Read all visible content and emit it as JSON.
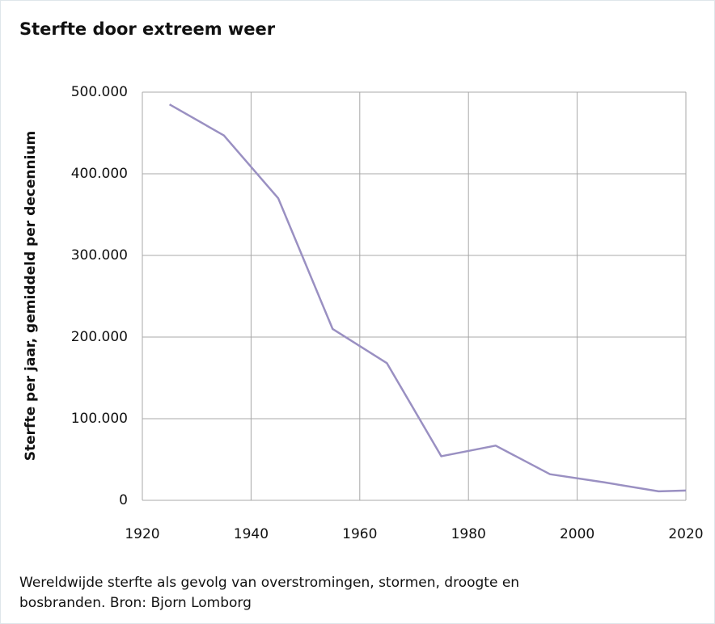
{
  "chart_data": {
    "type": "line",
    "title": "Sterfte door extreem weer",
    "y_label": "Sterfte per jaar, gemiddeld per decennium",
    "caption": [
      "Wereldwijde sterfte als gevolg van overstromingen, stormen, droogte en",
      "bosbranden. Bron: Bjorn Lomborg"
    ],
    "x": [
      1925,
      1935,
      1945,
      1955,
      1965,
      1975,
      1985,
      1995,
      2005,
      2015,
      2020
    ],
    "series": [
      {
        "color": "#9a90c2",
        "values": [
          485000,
          447000,
          370000,
          210000,
          168000,
          54000,
          67000,
          32000,
          22000,
          11000,
          12000
        ]
      }
    ],
    "xlim": [
      1920,
      2020
    ],
    "xticks": [
      1920,
      1940,
      1960,
      1980,
      2000,
      2020
    ],
    "ylim": [
      0,
      500000
    ],
    "yticks": [
      0,
      {
        "value": 100000,
        "label": "100.000"
      },
      {
        "value": 200000,
        "label": "200.000"
      },
      {
        "value": 300000,
        "label": "300.000"
      },
      {
        "value": 400000,
        "label": "400.000"
      },
      {
        "value": 500000,
        "label": "500.000"
      }
    ],
    "grid": true
  }
}
